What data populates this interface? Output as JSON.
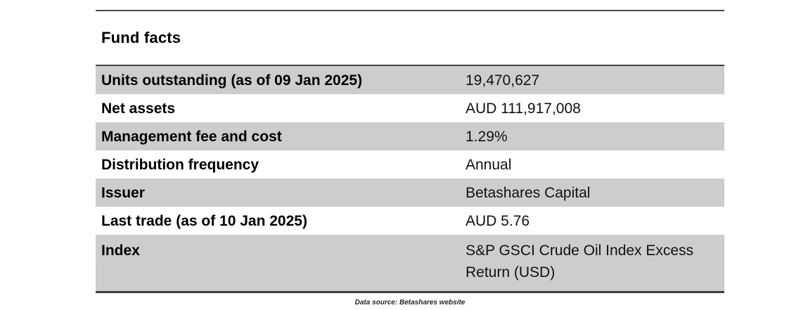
{
  "title": "Fund facts",
  "table": {
    "rows": [
      {
        "label": "Units outstanding (as of 09 Jan 2025)",
        "value": "19,470,627"
      },
      {
        "label": "Net assets",
        "value": "AUD 111,917,008"
      },
      {
        "label": "Management fee and cost",
        "value": "1.29%"
      },
      {
        "label": "Distribution frequency",
        "value": "Annual"
      },
      {
        "label": "Issuer",
        "value": "Betashares Capital"
      },
      {
        "label": "Last trade (as of 10 Jan 2025)",
        "value": "AUD 5.76"
      },
      {
        "label": "Index",
        "value": "S&P GSCI Crude Oil Index Excess Return (USD)"
      }
    ]
  },
  "footer": {
    "note": "Data source: Betashares website"
  },
  "colors": {
    "row_shade": "#cdcdcd",
    "rule": "#3f3f3f",
    "label_text": "#000000",
    "value_text": "#111111"
  }
}
